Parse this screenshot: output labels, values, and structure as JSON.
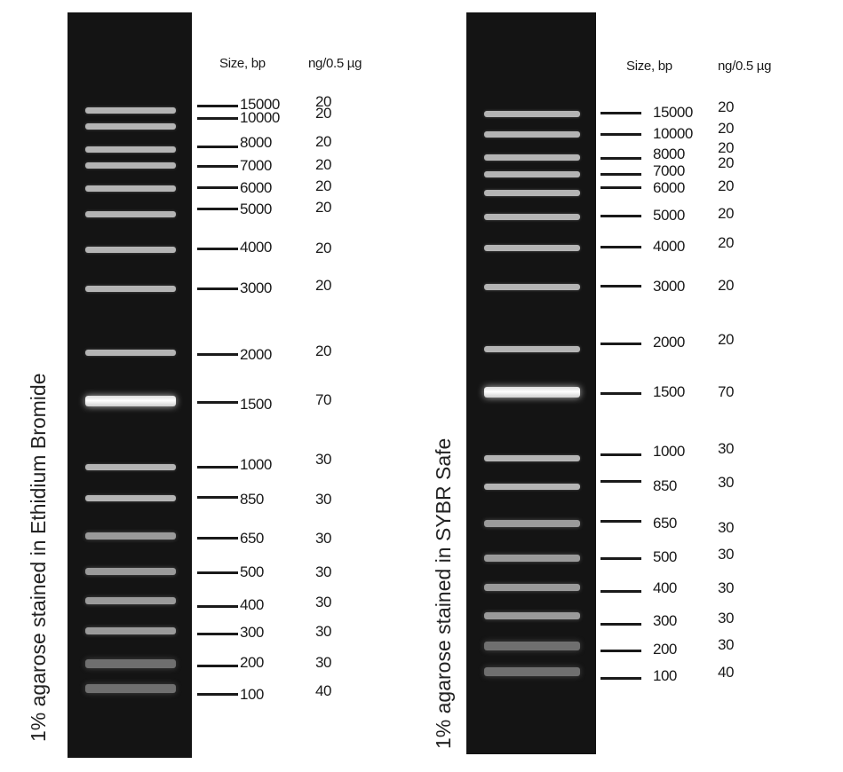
{
  "panels": [
    {
      "id": "ethidium",
      "stain_label": "1% agarose stained in Ethidium  Bromide",
      "header_size": "Size, bp",
      "header_ng": "ng/0.5  µg",
      "markers": [
        {
          "size": "15000",
          "ng": "20"
        },
        {
          "size": "10000",
          "ng": "20"
        },
        {
          "size": "8000",
          "ng": "20"
        },
        {
          "size": "7000",
          "ng": "20"
        },
        {
          "size": "6000",
          "ng": "20"
        },
        {
          "size": "5000",
          "ng": "20"
        },
        {
          "size": "4000",
          "ng": "20"
        },
        {
          "size": "3000",
          "ng": "20"
        },
        {
          "size": "2000",
          "ng": "20"
        },
        {
          "size": "1500",
          "ng": "70"
        },
        {
          "size": "1000",
          "ng": "30"
        },
        {
          "size": "850",
          "ng": "30"
        },
        {
          "size": "650",
          "ng": "30"
        },
        {
          "size": "500",
          "ng": "30"
        },
        {
          "size": "400",
          "ng": "30"
        },
        {
          "size": "300",
          "ng": "30"
        },
        {
          "size": "200",
          "ng": "30"
        },
        {
          "size": "100",
          "ng": "40"
        }
      ]
    },
    {
      "id": "sybr",
      "stain_label": "1% agarose stained in SYBR Safe",
      "header_size": "Size, bp",
      "header_ng": "ng/0.5  µg",
      "markers": [
        {
          "size": "15000",
          "ng": "20"
        },
        {
          "size": "10000",
          "ng": "20"
        },
        {
          "size": "8000",
          "ng": "20"
        },
        {
          "size": "7000",
          "ng": "20"
        },
        {
          "size": "6000",
          "ng": "20"
        },
        {
          "size": "5000",
          "ng": "20"
        },
        {
          "size": "4000",
          "ng": "20"
        },
        {
          "size": "3000",
          "ng": "20"
        },
        {
          "size": "2000",
          "ng": "20"
        },
        {
          "size": "1500",
          "ng": "70"
        },
        {
          "size": "1000",
          "ng": "30"
        },
        {
          "size": "850",
          "ng": "30"
        },
        {
          "size": "650",
          "ng": "30"
        },
        {
          "size": "500",
          "ng": "30"
        },
        {
          "size": "400",
          "ng": "30"
        },
        {
          "size": "300",
          "ng": "30"
        },
        {
          "size": "200",
          "ng": "30"
        },
        {
          "size": "100",
          "ng": "40"
        }
      ]
    }
  ]
}
